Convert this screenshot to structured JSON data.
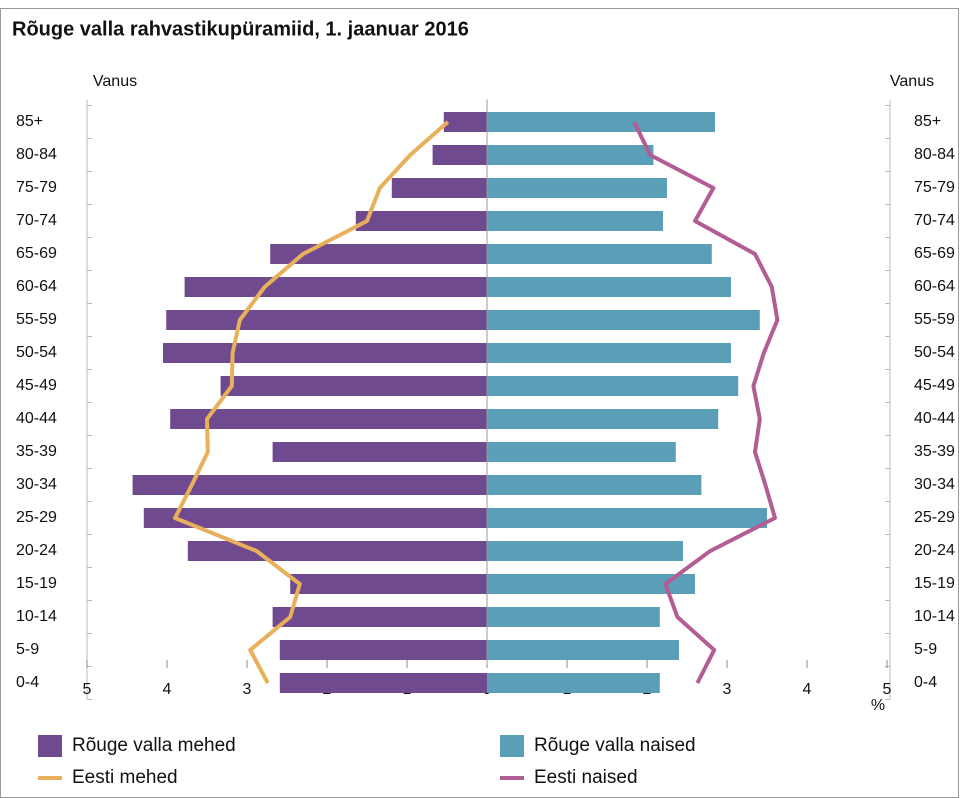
{
  "chart_data": {
    "type": "pyramid",
    "title": "Rõuge valla rahvastikupüramiid, 1. jaanuar 2016",
    "y_label": "Vanus",
    "x_label": "%",
    "categories": [
      "85+",
      "80-84",
      "75-79",
      "70-74",
      "65-69",
      "60-64",
      "55-59",
      "50-54",
      "45-49",
      "40-44",
      "35-39",
      "30-34",
      "25-29",
      "20-24",
      "15-19",
      "10-14",
      "5-9",
      "0-4"
    ],
    "xlim": [
      0,
      5
    ],
    "xticks": [
      0,
      1,
      2,
      3,
      4,
      5
    ],
    "series": [
      {
        "name": "Rõuge valla mehed",
        "mark": "bar",
        "side": "left",
        "color": "#6f4a8e",
        "values": [
          0.54,
          0.68,
          1.19,
          1.64,
          2.71,
          3.78,
          4.01,
          4.05,
          3.33,
          3.96,
          2.68,
          4.43,
          4.29,
          3.74,
          2.46,
          2.68,
          2.59,
          2.59
        ]
      },
      {
        "name": "Rõuge valla naised",
        "mark": "bar",
        "side": "right",
        "color": "#5b9eb8",
        "values": [
          2.85,
          2.08,
          2.25,
          2.2,
          2.81,
          3.05,
          3.41,
          3.05,
          3.14,
          2.89,
          2.36,
          2.68,
          3.5,
          2.45,
          2.6,
          2.16,
          2.4,
          2.16
        ]
      },
      {
        "name": "Eesti mehed",
        "mark": "line",
        "side": "left",
        "color": "#e8b05a",
        "values": [
          0.49,
          0.96,
          1.34,
          1.5,
          2.3,
          2.78,
          3.09,
          3.18,
          3.19,
          3.5,
          3.49,
          3.69,
          3.9,
          2.88,
          2.34,
          2.46,
          2.96,
          2.74
        ]
      },
      {
        "name": "Eesti naised",
        "mark": "line",
        "side": "right",
        "color": "#b25d93",
        "values": [
          1.84,
          2.04,
          2.83,
          2.6,
          3.35,
          3.56,
          3.63,
          3.46,
          3.33,
          3.41,
          3.35,
          3.48,
          3.6,
          2.79,
          2.23,
          2.38,
          2.84,
          2.63
        ]
      }
    ]
  }
}
